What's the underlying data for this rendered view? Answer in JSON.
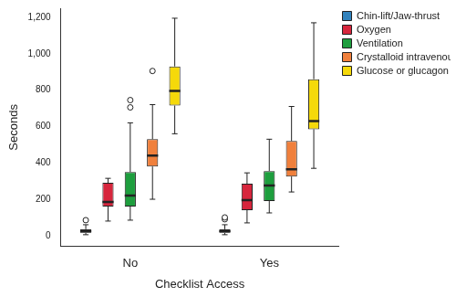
{
  "chart_data": {
    "type": "boxplot",
    "x_label": "Checklist Access",
    "y_label": "Seconds",
    "categories": [
      "No",
      "Yes"
    ],
    "ylim": [
      -60,
      1250
    ],
    "yticks": [
      0,
      200,
      400,
      600,
      800,
      {
        "value": 1000,
        "label": "1,000"
      },
      {
        "value": 1200,
        "label": "1,200"
      }
    ],
    "grid": false,
    "legend": "right",
    "series": [
      {
        "name": "Chin-lift/Jaw-thrust",
        "color": "#3182bd",
        "min": [
          5,
          5
        ],
        "q1": [
          15,
          15
        ],
        "median": [
          25,
          25
        ],
        "q3": [
          35,
          35
        ],
        "max": [
          60,
          60
        ],
        "outliers": [
          [
            85
          ],
          [
            90,
            100
          ]
        ]
      },
      {
        "name": "Oxygen",
        "color": "#d7263d",
        "min": [
          80,
          70
        ],
        "q1": [
          160,
          140
        ],
        "median": [
          185,
          195
        ],
        "q3": [
          290,
          285
        ],
        "max": [
          315,
          345
        ],
        "outliers": [
          [],
          []
        ]
      },
      {
        "name": "Ventilation",
        "color": "#1e9e3e",
        "min": [
          85,
          125
        ],
        "q1": [
          160,
          190
        ],
        "median": [
          220,
          275
        ],
        "q3": [
          350,
          355
        ],
        "max": [
          620,
          530
        ],
        "outliers": [
          [
            705,
            745
          ],
          []
        ]
      },
      {
        "name": "Crystalloid intravenous",
        "color": "#f0803c",
        "min": [
          200,
          240
        ],
        "q1": [
          380,
          325
        ],
        "median": [
          440,
          365
        ],
        "q3": [
          530,
          520
        ],
        "max": [
          720,
          710
        ],
        "outliers": [
          [
            905
          ],
          []
        ]
      },
      {
        "name": "Glucose or glucagon",
        "color": "#f5d90a",
        "min": [
          560,
          370
        ],
        "q1": [
          715,
          585
        ],
        "median": [
          795,
          630
        ],
        "q3": [
          930,
          860
        ],
        "max": [
          1195,
          1170
        ],
        "outliers": [
          [],
          []
        ]
      }
    ]
  }
}
